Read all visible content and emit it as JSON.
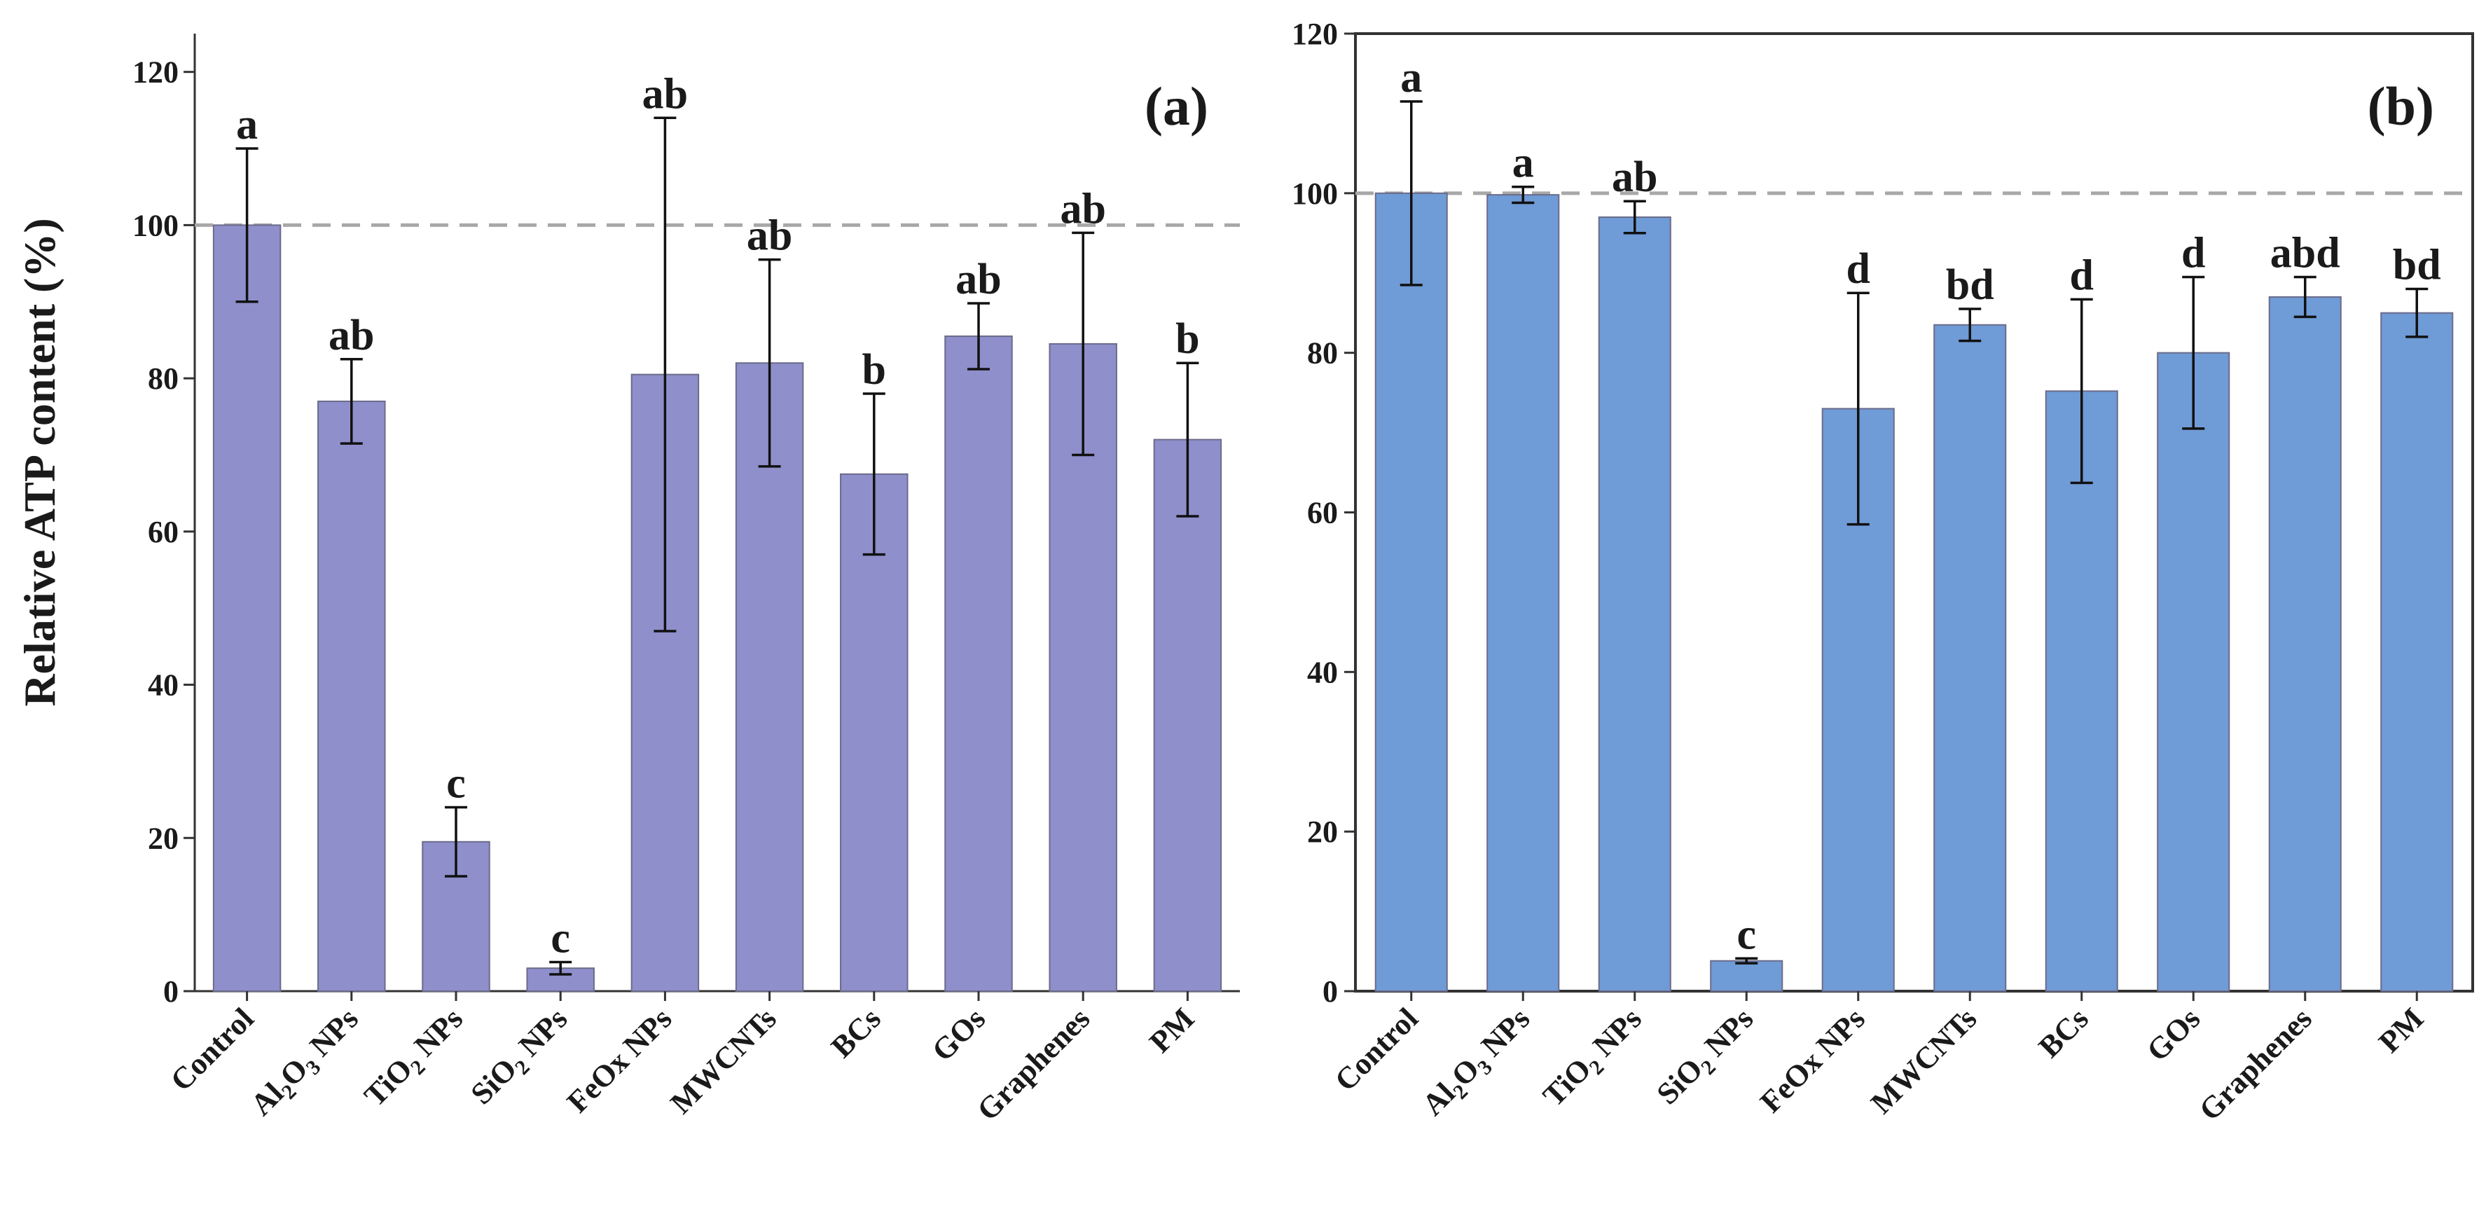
{
  "figure": {
    "ylabel": "Relative ATP content (%)",
    "reference_line": 100
  },
  "chart_data": [
    {
      "type": "bar",
      "panel_label": "(a)",
      "categories": [
        {
          "main": "Control"
        },
        {
          "main": "Al",
          "sub": "2",
          "mid": "O",
          "sub2": "3",
          "tail": " NPs"
        },
        {
          "main": "TiO",
          "sub": "2",
          "tail": " NPs"
        },
        {
          "main": "SiO",
          "sub": "2",
          "tail": " NPs"
        },
        {
          "main": "FeOx NPs"
        },
        {
          "main": "MWCNTs"
        },
        {
          "main": "BCs"
        },
        {
          "main": "GOs"
        },
        {
          "main": "Graphenes"
        },
        {
          "main": "PM"
        }
      ],
      "values": [
        100,
        77,
        19.5,
        3,
        80.5,
        82,
        67.5,
        85.5,
        84.5,
        72
      ],
      "errors": [
        10,
        5.5,
        4.5,
        0.8,
        33.5,
        13.5,
        10.5,
        4.3,
        14.5,
        10
      ],
      "significance": [
        "a",
        "ab",
        "c",
        "c",
        "ab",
        "ab",
        "b",
        "ab",
        "ab",
        "b"
      ],
      "ylim": [
        0,
        125
      ],
      "yticks": [
        0,
        20,
        40,
        60,
        80,
        100,
        120
      ],
      "bar_color": "#8f8fcc",
      "ylabel": "Relative ATP content (%)",
      "grid": false
    },
    {
      "type": "bar",
      "panel_label": "(b)",
      "categories": [
        {
          "main": "Control"
        },
        {
          "main": "Al",
          "sub": "2",
          "mid": "O",
          "sub2": "3",
          "tail": " NPs"
        },
        {
          "main": "TiO",
          "sub": "2",
          "tail": " NPs"
        },
        {
          "main": "SiO",
          "sub": "2",
          "tail": " NPs"
        },
        {
          "main": "FeOx NPs"
        },
        {
          "main": "MWCNTs"
        },
        {
          "main": "BCs"
        },
        {
          "main": "GOs"
        },
        {
          "main": "Graphenes"
        },
        {
          "main": "PM"
        }
      ],
      "values": [
        100,
        99.8,
        97,
        3.8,
        73,
        83.5,
        75.2,
        80,
        87,
        85
      ],
      "errors": [
        11.5,
        1,
        2,
        0.3,
        14.5,
        2,
        11.5,
        9.5,
        2.5,
        3
      ],
      "significance": [
        "a",
        "a",
        "ab",
        "c",
        "d",
        "bd",
        "d",
        "d",
        "abd",
        "bd"
      ],
      "ylim": [
        0,
        120
      ],
      "yticks": [
        0,
        20,
        40,
        60,
        80,
        100,
        120
      ],
      "bar_color": "#6f9bd6",
      "ylabel": "",
      "grid": false
    }
  ]
}
